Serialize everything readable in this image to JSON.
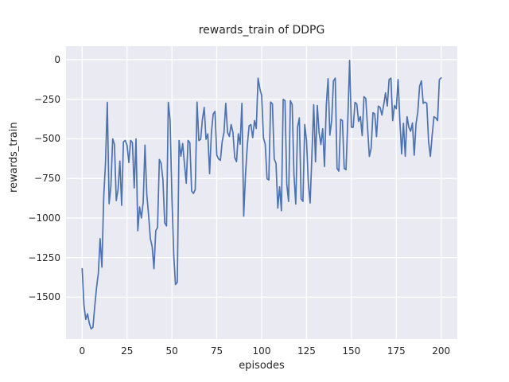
{
  "figure": {
    "title": "rewards_train of DDPG",
    "xlabel": "episodes",
    "ylabel": "rewards_train"
  },
  "colors": {
    "line": "#4C72B0",
    "plot_bg": "#EAEAF2",
    "grid": "#FFFFFF",
    "text": "#262626",
    "figure_bg": "#FFFFFF"
  },
  "chart_data": {
    "type": "line",
    "title": "rewards_train of DDPG",
    "xlabel": "episodes",
    "ylabel": "rewards_train",
    "grid": true,
    "legend": false,
    "xlim": [
      -9,
      209
    ],
    "ylim": [
      -1764,
      85
    ],
    "x_ticks": [
      0,
      25,
      50,
      75,
      100,
      125,
      150,
      175,
      200
    ],
    "x_tick_labels": [
      "0",
      "25",
      "50",
      "75",
      "100",
      "125",
      "150",
      "175",
      "200"
    ],
    "y_ticks": [
      0,
      -250,
      -500,
      -750,
      -1000,
      -1250,
      -1500
    ],
    "y_tick_labels": [
      "0",
      "−250",
      "−500",
      "−750",
      "−1000",
      "−1250",
      "−1500"
    ],
    "series": [
      {
        "name": "rewards_train",
        "color": "#4C72B0",
        "x": [
          0,
          1,
          2,
          3,
          4,
          5,
          6,
          7,
          8,
          9,
          10,
          11,
          12,
          13,
          14,
          15,
          16,
          17,
          18,
          19,
          20,
          21,
          22,
          23,
          24,
          25,
          26,
          27,
          28,
          29,
          30,
          31,
          32,
          33,
          34,
          35,
          36,
          37,
          38,
          39,
          40,
          41,
          42,
          43,
          44,
          45,
          46,
          47,
          48,
          49,
          50,
          51,
          52,
          53,
          54,
          55,
          56,
          57,
          58,
          59,
          60,
          61,
          62,
          63,
          64,
          65,
          66,
          67,
          68,
          69,
          70,
          71,
          72,
          73,
          74,
          75,
          76,
          77,
          78,
          79,
          80,
          81,
          82,
          83,
          84,
          85,
          86,
          87,
          88,
          89,
          90,
          91,
          92,
          93,
          94,
          95,
          96,
          97,
          98,
          99,
          100,
          101,
          102,
          103,
          104,
          105,
          106,
          107,
          108,
          109,
          110,
          111,
          112,
          113,
          114,
          115,
          116,
          117,
          118,
          119,
          120,
          121,
          122,
          123,
          124,
          125,
          126,
          127,
          128,
          129,
          130,
          131,
          132,
          133,
          134,
          135,
          136,
          137,
          138,
          139,
          140,
          141,
          142,
          143,
          144,
          145,
          146,
          147,
          148,
          149,
          150,
          151,
          152,
          153,
          154,
          155,
          156,
          157,
          158,
          159,
          160,
          161,
          162,
          163,
          164,
          165,
          166,
          167,
          168,
          169,
          170,
          171,
          172,
          173,
          174,
          175,
          176,
          177,
          178,
          179,
          180,
          181,
          182,
          183,
          184,
          185,
          186,
          187,
          188,
          189,
          190,
          191,
          192,
          193,
          194,
          195,
          196,
          197,
          198,
          199,
          200
        ],
        "y": [
          -1320,
          -1550,
          -1640,
          -1605,
          -1665,
          -1700,
          -1690,
          -1560,
          -1440,
          -1350,
          -1130,
          -1310,
          -870,
          -650,
          -270,
          -910,
          -800,
          -500,
          -535,
          -890,
          -820,
          -640,
          -920,
          -520,
          -510,
          -540,
          -650,
          -510,
          -525,
          -810,
          -500,
          -1080,
          -930,
          -1000,
          -900,
          -540,
          -850,
          -980,
          -1130,
          -1180,
          -1320,
          -1080,
          -1060,
          -630,
          -655,
          -760,
          -1030,
          -1050,
          -270,
          -385,
          -865,
          -1230,
          -1420,
          -1405,
          -510,
          -610,
          -530,
          -660,
          -780,
          -510,
          -525,
          -830,
          -845,
          -820,
          -268,
          -511,
          -503,
          -377,
          -302,
          -503,
          -469,
          -720,
          -462,
          -343,
          -327,
          -603,
          -627,
          -636,
          -518,
          -460,
          -276,
          -460,
          -485,
          -410,
          -460,
          -619,
          -644,
          -468,
          -535,
          -276,
          -988,
          -728,
          -543,
          -418,
          -410,
          -493,
          -385,
          -435,
          -117,
          -184,
          -226,
          -493,
          -535,
          -752,
          -760,
          -268,
          -280,
          -627,
          -655,
          -937,
          -803,
          -954,
          -251,
          -259,
          -786,
          -895,
          -259,
          -284,
          -728,
          -912,
          -426,
          -368,
          -879,
          -895,
          -410,
          -510,
          -779,
          -905,
          -603,
          -285,
          -645,
          -290,
          -461,
          -536,
          -436,
          -675,
          -290,
          -120,
          -477,
          -385,
          -134,
          -117,
          -687,
          -704,
          -377,
          -385,
          -687,
          -695,
          -380,
          -5,
          -427,
          -427,
          -270,
          -280,
          -390,
          -360,
          -480,
          -234,
          -245,
          -430,
          -611,
          -560,
          -335,
          -343,
          -486,
          -293,
          -302,
          -350,
          -285,
          -210,
          -293,
          -126,
          -117,
          -385,
          -290,
          -310,
          -126,
          -385,
          -595,
          -402,
          -610,
          -360,
          -427,
          -452,
          -400,
          -603,
          -405,
          -330,
          -167,
          -134,
          -276,
          -268,
          -276,
          -519,
          -611,
          -477,
          -360,
          -368,
          -385,
          -126,
          -115
        ]
      }
    ]
  }
}
